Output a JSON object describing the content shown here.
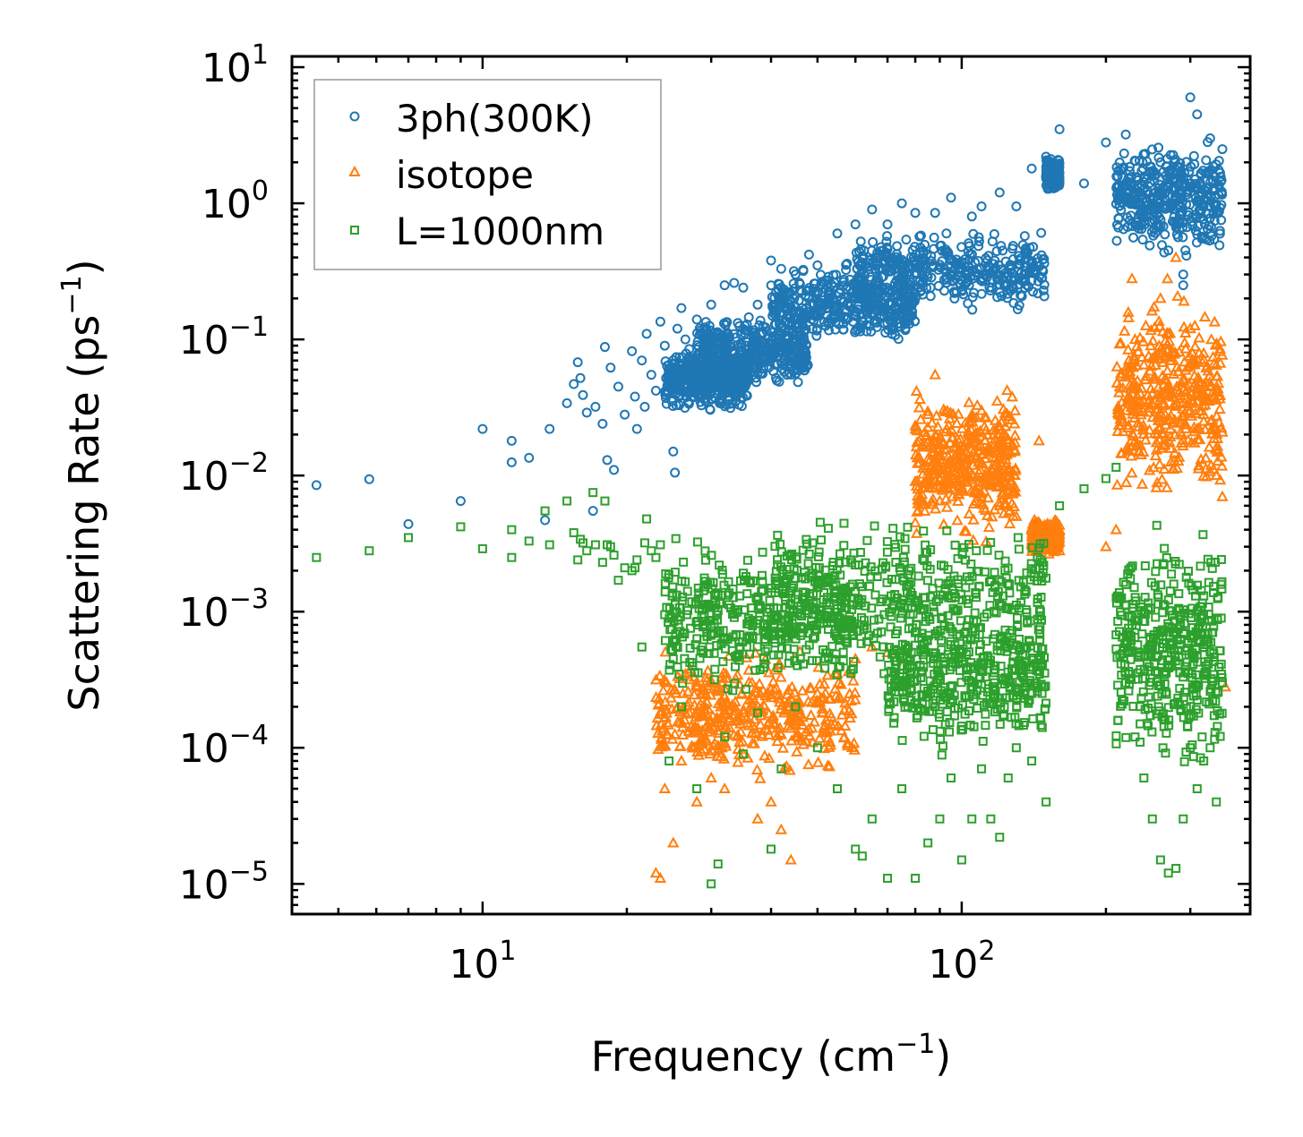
{
  "chart_data": {
    "type": "scatter",
    "title": "",
    "xlabel": "Frequency (cm",
    "xlabel_sup": "−1",
    "xlabel_end": ")",
    "ylabel": "Scattering Rate (ps",
    "ylabel_sup": "−1",
    "ylabel_end": ")",
    "xscale": "log",
    "yscale": "log",
    "xlim": [
      4.0,
      400.0
    ],
    "ylim": [
      6e-06,
      12.0
    ],
    "x_ticks": [
      {
        "base": "10",
        "exp": "1",
        "value": 10
      },
      {
        "base": "10",
        "exp": "2",
        "value": 100
      }
    ],
    "y_ticks": [
      {
        "base": "10",
        "exp": "1",
        "value": 10
      },
      {
        "base": "10",
        "exp": "0",
        "value": 1
      },
      {
        "base": "10",
        "exp": "−1",
        "value": 0.1
      },
      {
        "base": "10",
        "exp": "−2",
        "value": 0.01
      },
      {
        "base": "10",
        "exp": "−3",
        "value": 0.001
      },
      {
        "base": "10",
        "exp": "−4",
        "value": 0.0001
      },
      {
        "base": "10",
        "exp": "−5",
        "value": 1e-05
      }
    ],
    "legend_position": "top-left",
    "series": [
      {
        "name": "3ph(300K)",
        "marker": "circle",
        "color": "#1f77b4",
        "points": [
          [
            4.5,
            0.0085
          ],
          [
            5.8,
            0.0094
          ],
          [
            7.0,
            0.0044
          ],
          [
            9.0,
            0.0065
          ],
          [
            10.0,
            0.022
          ],
          [
            11.5,
            0.018
          ],
          [
            11.5,
            0.0125
          ],
          [
            12.5,
            0.0135
          ],
          [
            13.5,
            0.0047
          ],
          [
            13.8,
            0.022
          ],
          [
            15.0,
            0.034
          ],
          [
            15.5,
            0.047
          ],
          [
            15.8,
            0.068
          ],
          [
            16.0,
            0.052
          ],
          [
            16.2,
            0.039
          ],
          [
            16.5,
            0.029
          ],
          [
            17.0,
            0.0055
          ],
          [
            17.2,
            0.032
          ],
          [
            17.8,
            0.024
          ],
          [
            18.0,
            0.088
          ],
          [
            18.2,
            0.013
          ],
          [
            18.5,
            0.062
          ],
          [
            18.8,
            0.011
          ],
          [
            19.2,
            0.045
          ],
          [
            19.8,
            0.028
          ],
          [
            20.5,
            0.082
          ],
          [
            20.8,
            0.038
          ],
          [
            21.0,
            0.022
          ],
          [
            21.5,
            0.07
          ],
          [
            21.8,
            0.032
          ],
          [
            22.0,
            0.11
          ],
          [
            22.5,
            0.055
          ],
          [
            23.0,
            0.042
          ],
          [
            23.5,
            0.135
          ],
          [
            24.0,
            0.09
          ],
          [
            24.5,
            0.065
          ],
          [
            25.0,
            0.015
          ],
          [
            25.2,
            0.0105
          ],
          [
            25.5,
            0.12
          ],
          [
            26.0,
            0.17
          ],
          [
            26.5,
            0.1
          ],
          [
            27.0,
            0.085
          ],
          [
            28.0,
            0.14
          ],
          [
            30.0,
            0.18
          ],
          [
            32.0,
            0.25
          ],
          [
            33.5,
            0.26
          ],
          [
            35.0,
            0.24
          ],
          [
            37.5,
            0.18
          ],
          [
            40.0,
            0.38
          ],
          [
            42.0,
            0.33
          ],
          [
            45.0,
            0.3
          ],
          [
            48.0,
            0.42
          ],
          [
            50.0,
            0.35
          ],
          [
            55.0,
            0.6
          ],
          [
            60.0,
            0.7
          ],
          [
            65.0,
            0.9
          ],
          [
            70.0,
            0.7
          ],
          [
            75.0,
            1.0
          ],
          [
            80.0,
            0.85
          ],
          [
            88.0,
            0.85
          ],
          [
            95.0,
            1.1
          ],
          [
            105.0,
            0.8
          ],
          [
            110.0,
            0.95
          ],
          [
            120.0,
            1.2
          ],
          [
            130.0,
            0.95
          ],
          [
            140.0,
            1.8
          ],
          [
            150.0,
            2.2
          ],
          [
            160.0,
            3.5
          ],
          [
            180.0,
            1.4
          ],
          [
            200.0,
            2.8
          ],
          [
            220.0,
            3.2
          ],
          [
            240.0,
            2.3
          ],
          [
            250.0,
            1.0
          ],
          [
            260.0,
            2.0
          ],
          [
            270.0,
            1.3
          ],
          [
            280.0,
            0.7
          ],
          [
            290.0,
            0.3
          ],
          [
            300.0,
            6.0
          ],
          [
            310.0,
            4.5
          ],
          [
            330.0,
            3.0
          ],
          [
            350.0,
            2.5
          ],
          [
            290.0,
            0.25
          ],
          [
            270.0,
            0.45
          ]
        ],
        "bands": [
          {
            "x": [
              24.0,
              36.0
            ],
            "y": [
              0.028,
              0.09
            ]
          },
          {
            "x": [
              28.0,
              48.0
            ],
            "y": [
              0.04,
              0.16
            ]
          },
          {
            "x": [
              40.0,
              80.0
            ],
            "y": [
              0.08,
              0.4
            ]
          },
          {
            "x": [
              60.0,
              150.0
            ],
            "y": [
              0.15,
              0.7
            ]
          },
          {
            "x": [
              150.0,
              160.0
            ],
            "y": [
              1.2,
              2.2
            ]
          },
          {
            "x": [
              210.0,
              350.0
            ],
            "y": [
              0.35,
              3.5
            ]
          }
        ]
      },
      {
        "name": "isotope",
        "marker": "triangle",
        "color": "#ff7f0e",
        "points": [
          [
            23.0,
            1.2e-05
          ],
          [
            23.5,
            1.1e-05
          ],
          [
            24.0,
            5e-05
          ],
          [
            25.0,
            2e-05
          ],
          [
            26.0,
            8e-05
          ],
          [
            28.0,
            4e-05
          ],
          [
            30.0,
            6e-05
          ],
          [
            32.0,
            5e-05
          ],
          [
            35.0,
            9e-05
          ],
          [
            37.5,
            3e-05
          ],
          [
            40.0,
            4e-05
          ],
          [
            42.0,
            2.5e-05
          ],
          [
            44.0,
            1.5e-05
          ],
          [
            46.0,
            0.00018
          ],
          [
            50.0,
            0.00025
          ],
          [
            55.0,
            0.00035
          ],
          [
            60.0,
            0.00045
          ],
          [
            65.0,
            0.00055
          ],
          [
            70.0,
            0.0005
          ],
          [
            75.0,
            0.0004
          ],
          [
            80.0,
            0.0045
          ],
          [
            85.0,
            0.028
          ],
          [
            88.0,
            0.055
          ],
          [
            90.0,
            0.0095
          ],
          [
            95.0,
            0.012
          ],
          [
            100.0,
            0.012
          ],
          [
            105.0,
            0.028
          ],
          [
            110.0,
            0.03
          ],
          [
            115.0,
            0.009
          ],
          [
            120.0,
            0.006
          ],
          [
            130.0,
            0.005
          ],
          [
            140.0,
            0.004
          ],
          [
            145.0,
            0.018
          ],
          [
            150.0,
            0.004
          ],
          [
            160.0,
            0.0028
          ],
          [
            200.0,
            0.003
          ],
          [
            210.0,
            0.004
          ],
          [
            220.0,
            0.03
          ],
          [
            230.0,
            0.1
          ],
          [
            240.0,
            0.065
          ],
          [
            250.0,
            0.04
          ],
          [
            260.0,
            0.2
          ],
          [
            270.0,
            0.11
          ],
          [
            280.0,
            0.4
          ],
          [
            290.0,
            0.05
          ],
          [
            300.0,
            0.12
          ],
          [
            310.0,
            0.035
          ],
          [
            320.0,
            0.025
          ],
          [
            330.0,
            0.045
          ],
          [
            340.0,
            0.01
          ],
          [
            350.0,
            0.007
          ],
          [
            355.0,
            0.00028
          ]
        ],
        "bands": [
          {
            "x": [
              23.0,
              60.0
            ],
            "y": [
              5e-05,
              0.0006
            ]
          },
          {
            "x": [
              80.0,
              130.0
            ],
            "y": [
              0.003,
              0.05
            ]
          },
          {
            "x": [
              140.0,
              160.0
            ],
            "y": [
              0.0025,
              0.005
            ]
          },
          {
            "x": [
              210.0,
              350.0
            ],
            "y": [
              0.005,
              0.3
            ]
          }
        ]
      },
      {
        "name": "L=1000nm",
        "marker": "square",
        "color": "#2ca02c",
        "points": [
          [
            4.5,
            0.0025
          ],
          [
            5.8,
            0.0028
          ],
          [
            7.0,
            0.0035
          ],
          [
            9.0,
            0.0042
          ],
          [
            10.0,
            0.0029
          ],
          [
            11.5,
            0.004
          ],
          [
            11.5,
            0.0025
          ],
          [
            12.5,
            0.0033
          ],
          [
            13.5,
            0.0055
          ],
          [
            13.8,
            0.0031
          ],
          [
            15.0,
            0.0065
          ],
          [
            15.5,
            0.0038
          ],
          [
            15.8,
            0.0024
          ],
          [
            16.0,
            0.0034
          ],
          [
            16.2,
            0.0032
          ],
          [
            16.5,
            0.0028
          ],
          [
            17.0,
            0.0075
          ],
          [
            17.2,
            0.0031
          ],
          [
            17.8,
            0.0023
          ],
          [
            18.0,
            0.0065
          ],
          [
            18.2,
            0.0031
          ],
          [
            18.5,
            0.003
          ],
          [
            18.8,
            0.0026
          ],
          [
            19.2,
            0.0017
          ],
          [
            19.8,
            0.0021
          ],
          [
            20.5,
            0.002
          ],
          [
            20.8,
            0.0021
          ],
          [
            21.0,
            0.0024
          ],
          [
            21.5,
            0.00055
          ],
          [
            21.8,
            0.0032
          ],
          [
            22.0,
            0.0048
          ],
          [
            22.5,
            0.0028
          ],
          [
            23.0,
            0.0025
          ],
          [
            23.5,
            0.0031
          ],
          [
            24.0,
            0.00095
          ],
          [
            24.5,
            8e-05
          ],
          [
            25.0,
            0.00045
          ],
          [
            26.0,
            0.0002
          ],
          [
            28.0,
            5e-05
          ],
          [
            30.0,
            1e-05
          ],
          [
            31.0,
            1.4e-05
          ],
          [
            32.0,
            0.00012
          ],
          [
            35.0,
            9e-05
          ],
          [
            37.5,
            0.00018
          ],
          [
            40.0,
            1.8e-05
          ],
          [
            42.0,
            7e-05
          ],
          [
            45.0,
            0.0002
          ],
          [
            50.0,
            0.0001
          ],
          [
            55.0,
            5e-05
          ],
          [
            60.0,
            1.8e-05
          ],
          [
            62.0,
            1.6e-05
          ],
          [
            65.0,
            3e-05
          ],
          [
            70.0,
            1.1e-05
          ],
          [
            75.0,
            5e-05
          ],
          [
            80.0,
            1.1e-05
          ],
          [
            85.0,
            2e-05
          ],
          [
            90.0,
            3e-05
          ],
          [
            95.0,
            6e-05
          ],
          [
            100.0,
            1.5e-05
          ],
          [
            105.0,
            3e-05
          ],
          [
            110.0,
            7e-05
          ],
          [
            115.0,
            3e-05
          ],
          [
            120.0,
            2.2e-05
          ],
          [
            125.0,
            6e-05
          ],
          [
            130.0,
            0.0001
          ],
          [
            140.0,
            8e-05
          ],
          [
            150.0,
            4e-05
          ],
          [
            160.0,
            0.006
          ],
          [
            180.0,
            0.008
          ],
          [
            200.0,
            0.0095
          ],
          [
            210.0,
            0.0115
          ],
          [
            220.0,
            0.0003
          ],
          [
            230.0,
            0.00012
          ],
          [
            240.0,
            6e-05
          ],
          [
            250.0,
            3e-05
          ],
          [
            260.0,
            1.5e-05
          ],
          [
            270.0,
            1.2e-05
          ],
          [
            280.0,
            1.3e-05
          ],
          [
            290.0,
            3e-05
          ],
          [
            300.0,
            0.0001
          ],
          [
            310.0,
            5e-05
          ],
          [
            320.0,
            8e-05
          ],
          [
            330.0,
            0.0001
          ],
          [
            340.0,
            4e-05
          ],
          [
            350.0,
            0.0003
          ]
        ],
        "bands": [
          {
            "x": [
              24.0,
              60.0
            ],
            "y": [
              0.0002,
              0.004
            ]
          },
          {
            "x": [
              40.0,
              150.0
            ],
            "y": [
              0.0003,
              0.006
            ]
          },
          {
            "x": [
              70.0,
              150.0
            ],
            "y": [
              8e-05,
              0.0015
            ]
          },
          {
            "x": [
              210.0,
              350.0
            ],
            "y": [
              5e-05,
              0.0055
            ]
          }
        ]
      }
    ]
  }
}
